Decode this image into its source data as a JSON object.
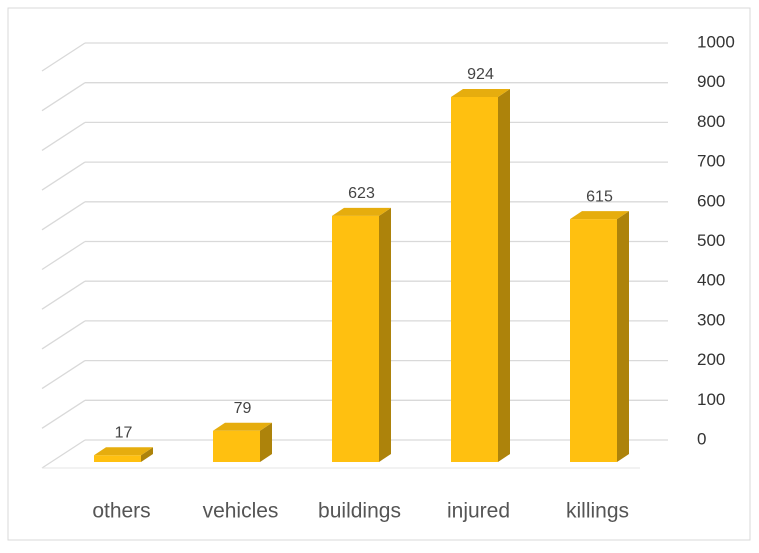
{
  "chart_data": {
    "type": "bar3d",
    "categories": [
      "others",
      "vehicles",
      "buildings",
      "injured",
      "killings"
    ],
    "values": [
      17,
      79,
      623,
      924,
      615
    ],
    "color": "#ffc010",
    "ylim": [
      0,
      1000
    ],
    "yticks": [
      0,
      100,
      200,
      300,
      400,
      500,
      600,
      700,
      800,
      900,
      1000
    ],
    "grid": true
  }
}
